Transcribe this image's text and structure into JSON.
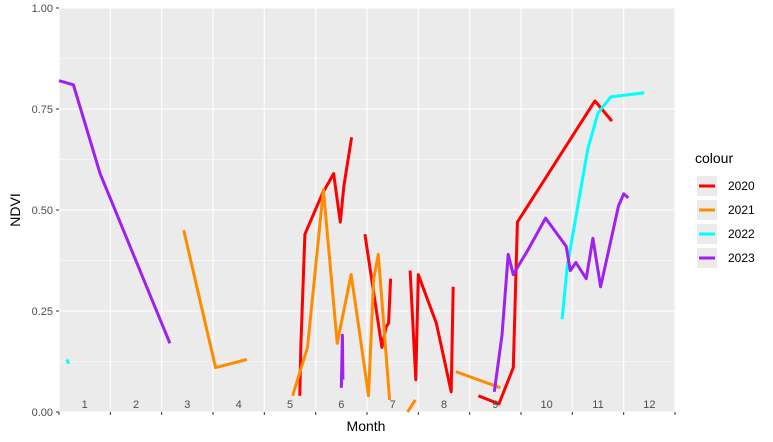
{
  "chart_data": {
    "type": "line",
    "xlabel": "Month",
    "ylabel": "NDVI",
    "xlim": [
      1,
      13
    ],
    "ylim": [
      0,
      1
    ],
    "yticks": [
      0.0,
      0.25,
      0.5,
      0.75,
      1.0
    ],
    "ytick_labels": [
      "0.00",
      "0.25",
      "0.50",
      "0.75",
      "1.00"
    ],
    "month_labels": [
      "1",
      "2",
      "3",
      "4",
      "5",
      "6",
      "7",
      "8",
      "9",
      "10",
      "11",
      "12"
    ],
    "legend_title": "colour",
    "legend_position": "right",
    "grid": true,
    "panel_background": "#ebebeb",
    "series": [
      {
        "name": "2020",
        "color": "#ff0000",
        "segments": [
          [
            [
              5.69,
              0.04
            ],
            [
              5.71,
              0.16
            ],
            [
              5.79,
              0.44
            ],
            [
              6.13,
              0.54
            ],
            [
              6.35,
              0.59
            ],
            [
              6.48,
              0.47
            ],
            [
              6.55,
              0.56
            ],
            [
              6.7,
              0.68
            ]
          ],
          [
            [
              6.96,
              0.44
            ],
            [
              7.29,
              0.16
            ],
            [
              7.37,
              0.21
            ],
            [
              7.42,
              0.22
            ],
            [
              7.46,
              0.33
            ]
          ],
          [
            [
              7.84,
              0.35
            ],
            [
              7.95,
              0.08
            ],
            [
              8.0,
              0.34
            ],
            [
              8.35,
              0.22
            ],
            [
              8.64,
              0.05
            ],
            [
              8.68,
              0.31
            ]
          ],
          [
            [
              9.17,
              0.04
            ],
            [
              9.57,
              0.02
            ],
            [
              9.85,
              0.11
            ],
            [
              9.93,
              0.47
            ],
            [
              11.44,
              0.77
            ],
            [
              11.77,
              0.72
            ]
          ]
        ]
      },
      {
        "name": "2021",
        "color": "#ff8c00",
        "segments": [
          [
            [
              3.43,
              0.45
            ],
            [
              4.05,
              0.11
            ],
            [
              4.66,
              0.13
            ]
          ],
          [
            [
              5.55,
              0.04
            ],
            [
              5.84,
              0.16
            ],
            [
              6.15,
              0.55
            ],
            [
              6.42,
              0.17
            ],
            [
              6.69,
              0.34
            ],
            [
              6.84,
              0.21
            ],
            [
              7.03,
              0.04
            ],
            [
              7.13,
              0.33
            ],
            [
              7.22,
              0.39
            ],
            [
              7.44,
              0.03
            ]
          ],
          [
            [
              7.79,
              0.0
            ],
            [
              7.94,
              0.03
            ]
          ],
          [
            [
              8.73,
              0.1
            ],
            [
              9.6,
              0.06
            ]
          ]
        ]
      },
      {
        "name": "2022",
        "color": "#00ffff",
        "segments": [
          [
            [
              1.15,
              0.13
            ],
            [
              1.19,
              0.12
            ]
          ],
          [
            [
              10.8,
              0.23
            ],
            [
              10.9,
              0.36
            ],
            [
              11.3,
              0.65
            ],
            [
              11.5,
              0.74
            ],
            [
              11.75,
              0.78
            ],
            [
              12.4,
              0.79
            ]
          ]
        ]
      },
      {
        "name": "2023",
        "color": "#a020f0",
        "segments": [
          [
            [
              1.0,
              0.82
            ],
            [
              1.28,
              0.81
            ],
            [
              1.8,
              0.59
            ],
            [
              3.16,
              0.17
            ]
          ],
          [
            [
              6.5,
              0.06
            ],
            [
              6.52,
              0.19
            ],
            [
              6.53,
              0.08
            ]
          ],
          [
            [
              9.48,
              0.05
            ],
            [
              9.63,
              0.19
            ],
            [
              9.75,
              0.39
            ],
            [
              9.85,
              0.34
            ],
            [
              9.94,
              0.36
            ],
            [
              10.13,
              0.4
            ],
            [
              10.48,
              0.48
            ],
            [
              10.88,
              0.41
            ],
            [
              10.96,
              0.35
            ],
            [
              11.07,
              0.37
            ],
            [
              11.27,
              0.33
            ],
            [
              11.4,
              0.43
            ],
            [
              11.55,
              0.31
            ],
            [
              11.9,
              0.51
            ],
            [
              12.0,
              0.54
            ],
            [
              12.09,
              0.53
            ]
          ]
        ]
      }
    ]
  }
}
